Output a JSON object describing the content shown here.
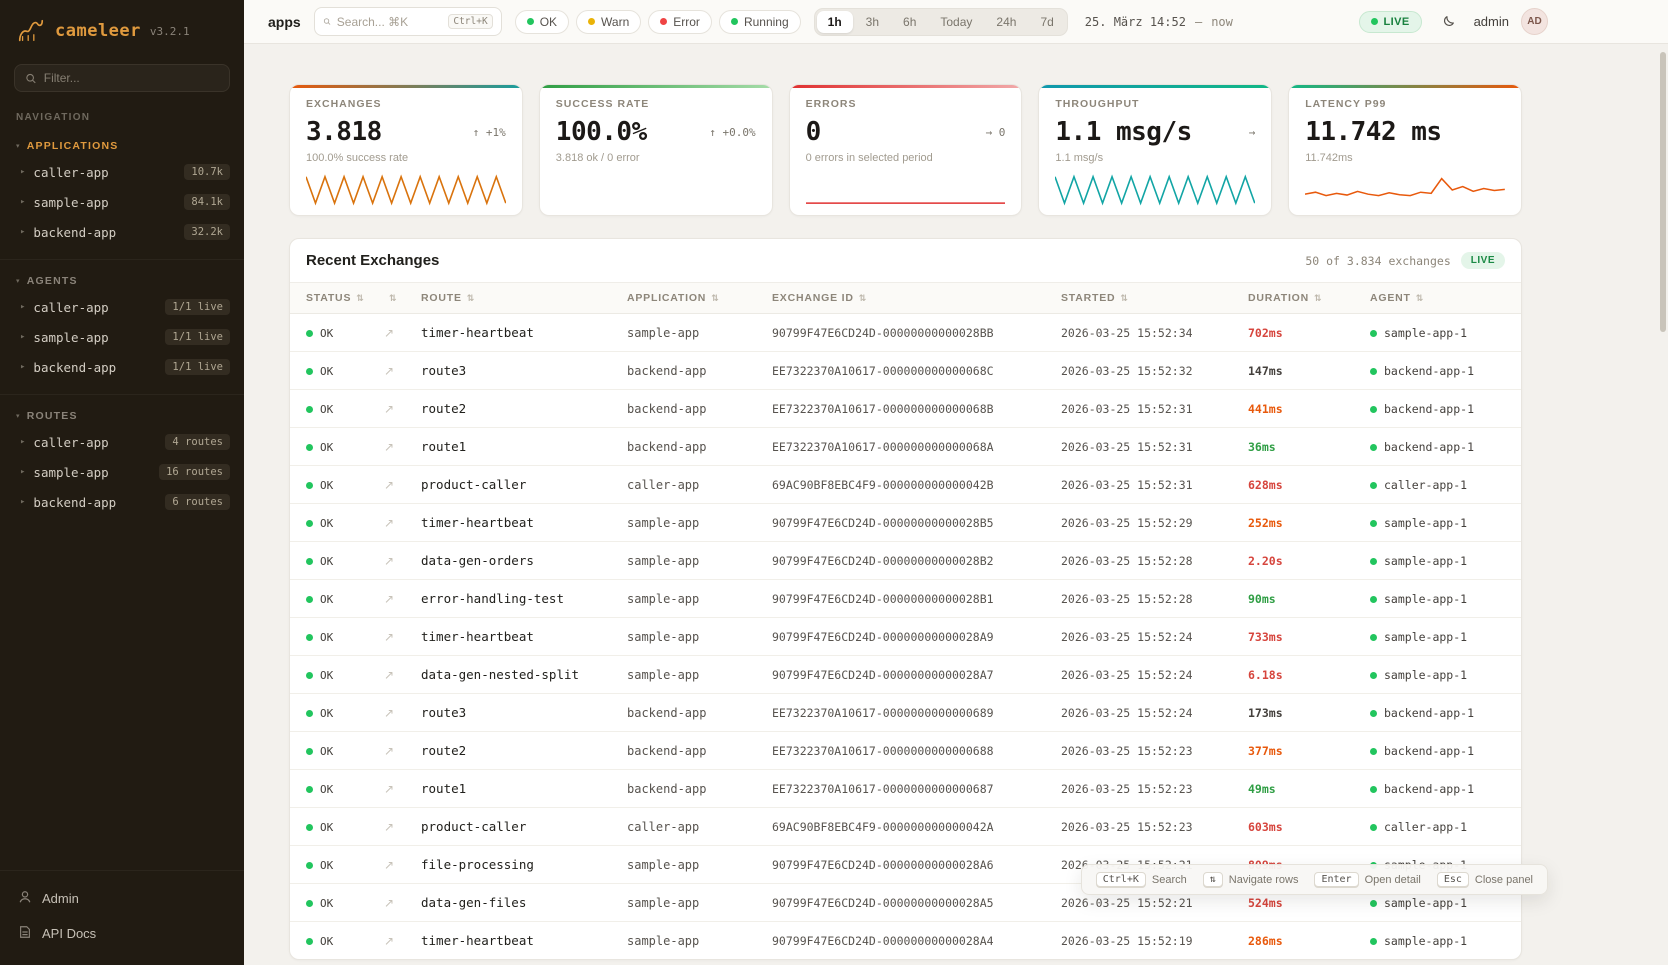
{
  "sidebar": {
    "logo": {
      "name": "cameleer",
      "version": "v3.2.1"
    },
    "filter_placeholder": "Filter...",
    "nav_label": "NAVIGATION",
    "sections": [
      {
        "title": "APPLICATIONS",
        "accent": true,
        "items": [
          {
            "label": "caller-app",
            "badge": "10.7k"
          },
          {
            "label": "sample-app",
            "badge": "84.1k"
          },
          {
            "label": "backend-app",
            "badge": "32.2k"
          }
        ]
      },
      {
        "title": "AGENTS",
        "accent": false,
        "items": [
          {
            "label": "caller-app",
            "badge": "1/1 live"
          },
          {
            "label": "sample-app",
            "badge": "1/1 live"
          },
          {
            "label": "backend-app",
            "badge": "1/1 live"
          }
        ]
      },
      {
        "title": "ROUTES",
        "accent": false,
        "items": [
          {
            "label": "caller-app",
            "badge": "4 routes"
          },
          {
            "label": "sample-app",
            "badge": "16 routes"
          },
          {
            "label": "backend-app",
            "badge": "6 routes"
          }
        ]
      }
    ],
    "footer": [
      {
        "label": "Admin",
        "icon": "user-icon"
      },
      {
        "label": "API Docs",
        "icon": "docs-icon"
      }
    ]
  },
  "topbar": {
    "breadcrumb": "apps",
    "search_placeholder": "Search... ⌘K",
    "search_shortcut": "Ctrl+K",
    "status_filters": [
      {
        "label": "OK",
        "color": "#22c55e"
      },
      {
        "label": "Warn",
        "color": "#eab308"
      },
      {
        "label": "Error",
        "color": "#ef4444"
      },
      {
        "label": "Running",
        "color": "#22c55e"
      }
    ],
    "time_ranges": [
      "1h",
      "3h",
      "6h",
      "Today",
      "24h",
      "7d"
    ],
    "active_range": "1h",
    "date_start": "25. März 14:52",
    "date_sep": "—",
    "date_end": "now",
    "live_label": "LIVE",
    "user": "admin",
    "avatar_initials": "AD"
  },
  "stats": [
    {
      "title": "EXCHANGES",
      "value": "3.818",
      "trend": "↑ +1%",
      "sub": "100.0% success rate",
      "strip": [
        "#e8590c",
        "#1a9e9e"
      ],
      "spark": {
        "type": "zigzag",
        "color": "#d9730d"
      }
    },
    {
      "title": "SUCCESS RATE",
      "value": "100.0%",
      "trend": "↑ +0.0%",
      "sub": "3.818 ok / 0 error",
      "strip": [
        "#2f9e44",
        "#a5dca8"
      ],
      "spark": {
        "type": "none",
        "color": ""
      }
    },
    {
      "title": "ERRORS",
      "value": "0",
      "trend": "→ 0",
      "sub": "0 errors in selected period",
      "strip": [
        "#e03131",
        "#f1a8a8"
      ],
      "spark": {
        "type": "flat",
        "color": "#e03131"
      }
    },
    {
      "title": "THROUGHPUT",
      "value": "1.1 msg/s",
      "trend": "→",
      "sub": "1.1 msg/s",
      "strip": [
        "#1098ad",
        "#12b886"
      ],
      "spark": {
        "type": "zigzag",
        "color": "#12a5a5"
      }
    },
    {
      "title": "LATENCY P99",
      "value": "11.742 ms",
      "trend": "",
      "sub": "11.742ms",
      "strip": [
        "#12b886",
        "#e8590c"
      ],
      "spark": {
        "type": "line",
        "color": "#e8590c",
        "values": [
          0.35,
          0.42,
          0.3,
          0.38,
          0.32,
          0.45,
          0.35,
          0.3,
          0.4,
          0.33,
          0.3,
          0.42,
          0.38,
          0.9,
          0.5,
          0.62,
          0.45,
          0.55,
          0.48,
          0.52
        ]
      }
    }
  ],
  "exchanges": {
    "title": "Recent Exchanges",
    "count_label": "50 of 3.834 exchanges",
    "live_label": "LIVE",
    "columns": [
      {
        "label": "STATUS"
      },
      {
        "label": ""
      },
      {
        "label": "ROUTE"
      },
      {
        "label": "APPLICATION"
      },
      {
        "label": "EXCHANGE ID"
      },
      {
        "label": "STARTED"
      },
      {
        "label": "DURATION"
      },
      {
        "label": "AGENT"
      }
    ],
    "duration_palette": {
      "red": "#d6453d",
      "orange": "#e8590c",
      "green": "#2f9e44",
      "default": "#44403c"
    },
    "rows": [
      {
        "status": "OK",
        "route": "timer-heartbeat",
        "app": "sample-app",
        "id": "90799F47E6CD24D-00000000000028BB",
        "started": "2026-03-25 15:52:34",
        "duration": "702ms",
        "dcolor": "red",
        "agent": "sample-app-1"
      },
      {
        "status": "OK",
        "route": "route3",
        "app": "backend-app",
        "id": "EE7322370A10617-000000000000068C",
        "started": "2026-03-25 15:52:32",
        "duration": "147ms",
        "dcolor": "default",
        "agent": "backend-app-1"
      },
      {
        "status": "OK",
        "route": "route2",
        "app": "backend-app",
        "id": "EE7322370A10617-000000000000068B",
        "started": "2026-03-25 15:52:31",
        "duration": "441ms",
        "dcolor": "orange",
        "agent": "backend-app-1"
      },
      {
        "status": "OK",
        "route": "route1",
        "app": "backend-app",
        "id": "EE7322370A10617-000000000000068A",
        "started": "2026-03-25 15:52:31",
        "duration": "36ms",
        "dcolor": "green",
        "agent": "backend-app-1"
      },
      {
        "status": "OK",
        "route": "product-caller",
        "app": "caller-app",
        "id": "69AC90BF8EBC4F9-000000000000042B",
        "started": "2026-03-25 15:52:31",
        "duration": "628ms",
        "dcolor": "red",
        "agent": "caller-app-1"
      },
      {
        "status": "OK",
        "route": "timer-heartbeat",
        "app": "sample-app",
        "id": "90799F47E6CD24D-00000000000028B5",
        "started": "2026-03-25 15:52:29",
        "duration": "252ms",
        "dcolor": "orange",
        "agent": "sample-app-1"
      },
      {
        "status": "OK",
        "route": "data-gen-orders",
        "app": "sample-app",
        "id": "90799F47E6CD24D-00000000000028B2",
        "started": "2026-03-25 15:52:28",
        "duration": "2.20s",
        "dcolor": "red",
        "agent": "sample-app-1"
      },
      {
        "status": "OK",
        "route": "error-handling-test",
        "app": "sample-app",
        "id": "90799F47E6CD24D-00000000000028B1",
        "started": "2026-03-25 15:52:28",
        "duration": "90ms",
        "dcolor": "green",
        "agent": "sample-app-1"
      },
      {
        "status": "OK",
        "route": "timer-heartbeat",
        "app": "sample-app",
        "id": "90799F47E6CD24D-00000000000028A9",
        "started": "2026-03-25 15:52:24",
        "duration": "733ms",
        "dcolor": "red",
        "agent": "sample-app-1"
      },
      {
        "status": "OK",
        "route": "data-gen-nested-split",
        "app": "sample-app",
        "id": "90799F47E6CD24D-00000000000028A7",
        "started": "2026-03-25 15:52:24",
        "duration": "6.18s",
        "dcolor": "red",
        "agent": "sample-app-1"
      },
      {
        "status": "OK",
        "route": "route3",
        "app": "backend-app",
        "id": "EE7322370A10617-0000000000000689",
        "started": "2026-03-25 15:52:24",
        "duration": "173ms",
        "dcolor": "default",
        "agent": "backend-app-1"
      },
      {
        "status": "OK",
        "route": "route2",
        "app": "backend-app",
        "id": "EE7322370A10617-0000000000000688",
        "started": "2026-03-25 15:52:23",
        "duration": "377ms",
        "dcolor": "orange",
        "agent": "backend-app-1"
      },
      {
        "status": "OK",
        "route": "route1",
        "app": "backend-app",
        "id": "EE7322370A10617-0000000000000687",
        "started": "2026-03-25 15:52:23",
        "duration": "49ms",
        "dcolor": "green",
        "agent": "backend-app-1"
      },
      {
        "status": "OK",
        "route": "product-caller",
        "app": "caller-app",
        "id": "69AC90BF8EBC4F9-000000000000042A",
        "started": "2026-03-25 15:52:23",
        "duration": "603ms",
        "dcolor": "red",
        "agent": "caller-app-1"
      },
      {
        "status": "OK",
        "route": "file-processing",
        "app": "sample-app",
        "id": "90799F47E6CD24D-00000000000028A6",
        "started": "2026-03-25 15:52:21",
        "duration": "809ms",
        "dcolor": "red",
        "agent": "sample-app-1"
      },
      {
        "status": "OK",
        "route": "data-gen-files",
        "app": "sample-app",
        "id": "90799F47E6CD24D-00000000000028A5",
        "started": "2026-03-25 15:52:21",
        "duration": "524ms",
        "dcolor": "red",
        "agent": "sample-app-1"
      },
      {
        "status": "OK",
        "route": "timer-heartbeat",
        "app": "sample-app",
        "id": "90799F47E6CD24D-00000000000028A4",
        "started": "2026-03-25 15:52:19",
        "duration": "286ms",
        "dcolor": "orange",
        "agent": "sample-app-1"
      }
    ]
  },
  "hints": [
    {
      "key": "Ctrl+K",
      "label": "Search"
    },
    {
      "key": "⇅",
      "label": "Navigate rows"
    },
    {
      "key": "Enter",
      "label": "Open detail"
    },
    {
      "key": "Esc",
      "label": "Close panel"
    }
  ]
}
